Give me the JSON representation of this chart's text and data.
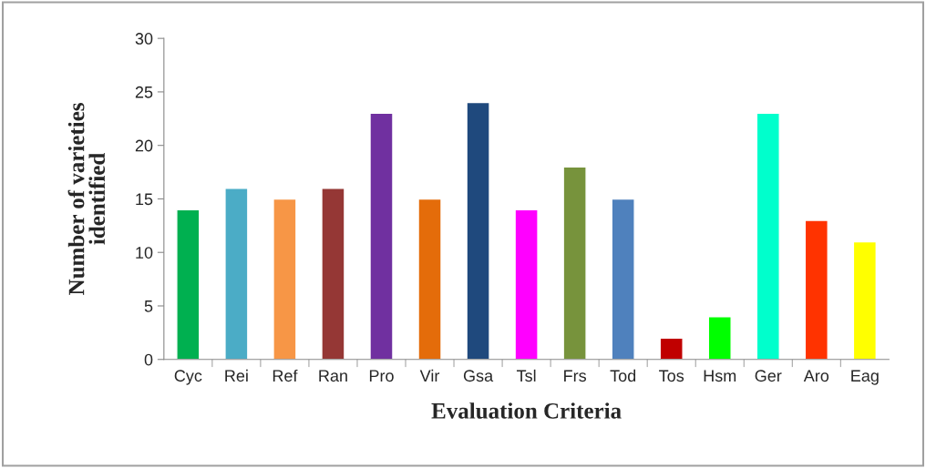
{
  "chart_data": {
    "type": "bar",
    "xlabel": "Evaluation Criteria",
    "ylabel": "Number of varieties\nidentified",
    "categories": [
      "Cyc",
      "Rei",
      "Ref",
      "Ran",
      "Pro",
      "Vir",
      "Gsa",
      "Tsl",
      "Frs",
      "Tod",
      "Tos",
      "Hsm",
      "Ger",
      "Aro",
      "Eag"
    ],
    "values": [
      14,
      16,
      15,
      16,
      23,
      15,
      24,
      14,
      18,
      15,
      2,
      4,
      23,
      13,
      11
    ],
    "colors": [
      "#00b050",
      "#4bacc6",
      "#f79646",
      "#953735",
      "#7030a0",
      "#e46c0a",
      "#1f497d",
      "#ff00ff",
      "#77933c",
      "#4f81bd",
      "#c00000",
      "#00ff00",
      "#00ffcc",
      "#ff3300",
      "#ffff00"
    ],
    "ylim": [
      0,
      30
    ],
    "yticks": [
      0,
      5,
      10,
      15,
      20,
      25,
      30
    ],
    "grid": false,
    "legend": false
  }
}
